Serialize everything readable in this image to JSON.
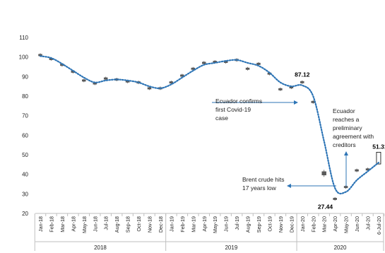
{
  "chart_data": {
    "type": "line",
    "title": "",
    "xlabel": "",
    "ylabel": "",
    "ylim": [
      20,
      110
    ],
    "yticks": [
      "20",
      "30",
      "40",
      "50",
      "60",
      "70",
      "80",
      "90",
      "100",
      "110"
    ],
    "grid": false,
    "categories": [
      "Jan-18",
      "Feb-18",
      "Mar-18",
      "Apr-18",
      "May-18",
      "Jun-18",
      "Jul-18",
      "Aug-18",
      "Sep-18",
      "Oct-18",
      "Nov-18",
      "Dec-18",
      "Jan-19",
      "Feb-19",
      "Mar-19",
      "Apr-19",
      "May-19",
      "Jun-19",
      "Jul-19",
      "Aug-19",
      "Sep-19",
      "Oct-19",
      "Nov-19",
      "Dec-19",
      "Jan-20",
      "Feb-20",
      "Mar-20",
      "Apr-20",
      "May-20",
      "Jun-20",
      "Jul-20",
      "6-Jul-20"
    ],
    "year_groups": [
      {
        "label": "2018",
        "start": 0,
        "end": 11
      },
      {
        "label": "2019",
        "start": 12,
        "end": 23
      },
      {
        "label": "2020",
        "start": 24,
        "end": 31
      }
    ],
    "series": [
      {
        "values": [
          101.0,
          99.0,
          96.0,
          92.5,
          88.0,
          86.5,
          89.0,
          88.5,
          87.5,
          87.0,
          84.0,
          84.0,
          87.0,
          90.5,
          94.0,
          97.0,
          97.5,
          97.5,
          98.5,
          94.0,
          96.5,
          91.5,
          83.5,
          84.5,
          87.12,
          77.0,
          40.5,
          27.44,
          33.5,
          42.0,
          42.5,
          51.31
        ]
      },
      {
        "values": [
          100.5,
          99.5,
          96.5,
          93.0,
          89.5,
          87.0,
          88.0,
          88.5,
          88.0,
          87.0,
          85.0,
          84.0,
          86.0,
          89.5,
          93.0,
          96.0,
          97.0,
          98.0,
          98.5,
          97.0,
          95.5,
          92.0,
          87.0,
          85.0,
          85.5,
          80.0,
          57.0,
          33.0,
          31.0,
          37.0,
          41.5,
          46.0
        ]
      }
    ],
    "data_labels": [
      {
        "index": 24,
        "text": "87.12"
      },
      {
        "index": 27,
        "text": "27.44"
      },
      {
        "index": 31,
        "text": "51.31"
      }
    ],
    "annotations": [
      {
        "lines": [
          "Ecuador confirms",
          "first Covid-19",
          "case"
        ]
      },
      {
        "lines": [
          "Ecuador",
          "reaches a",
          "preliminary",
          "agreement with",
          "creditors"
        ]
      },
      {
        "lines": [
          "Brent crude hits",
          "17 years low"
        ]
      }
    ],
    "colors": {
      "trend": "#2e75b6",
      "arrow": "#2e75b6",
      "candle": "#595959",
      "axis": "#bfbfbf",
      "text": "#222222"
    }
  }
}
